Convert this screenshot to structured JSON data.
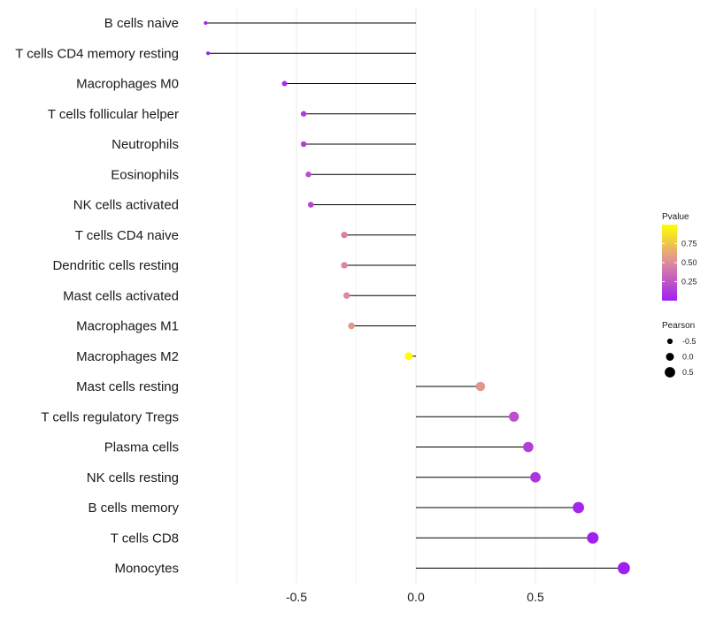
{
  "chart_data": {
    "type": "lollipop",
    "title": "",
    "xlabel": "",
    "ylabel": "",
    "xlim": [
      -0.9,
      0.9
    ],
    "x_ticks": [
      -0.5,
      0.0,
      0.5
    ],
    "x_tick_labels": [
      "-0.5",
      "0.0",
      "0.5"
    ],
    "grid": true,
    "categories": [
      "B cells naive",
      "T cells CD4 memory resting",
      "Macrophages M0",
      "T cells follicular helper",
      "Neutrophils",
      "Eosinophils",
      "NK cells activated",
      "T cells CD4 naive",
      "Dendritic cells resting",
      "Mast cells activated",
      "Macrophages M1",
      "Macrophages M2",
      "Mast cells resting",
      "T cells regulatory  Tregs",
      "Plasma cells",
      "NK cells resting",
      "B cells memory",
      "T cells CD8",
      "Monocytes"
    ],
    "pearson": [
      -0.88,
      -0.87,
      -0.55,
      -0.47,
      -0.47,
      -0.45,
      -0.44,
      -0.3,
      -0.3,
      -0.29,
      -0.27,
      -0.03,
      0.27,
      0.41,
      0.47,
      0.5,
      0.68,
      0.74,
      0.87
    ],
    "pvalue": [
      0.0,
      0.0,
      0.06,
      0.14,
      0.15,
      0.21,
      0.18,
      0.45,
      0.47,
      0.49,
      0.55,
      1.0,
      0.55,
      0.22,
      0.15,
      0.1,
      0.03,
      0.01,
      0.0
    ],
    "color_legend": {
      "title": "Pvalue",
      "ticks": [
        0.75,
        0.5,
        0.25
      ],
      "tick_labels": [
        "0.75",
        "0.50",
        "0.25"
      ],
      "range": [
        0,
        1
      ],
      "low_color": "#a020f0",
      "high_color": "#ffff00"
    },
    "size_legend": {
      "title": "Pearson",
      "values": [
        -0.5,
        0.0,
        0.5
      ],
      "labels": [
        "-0.5",
        "0.0",
        "0.5"
      ]
    },
    "legend_position": "right"
  }
}
